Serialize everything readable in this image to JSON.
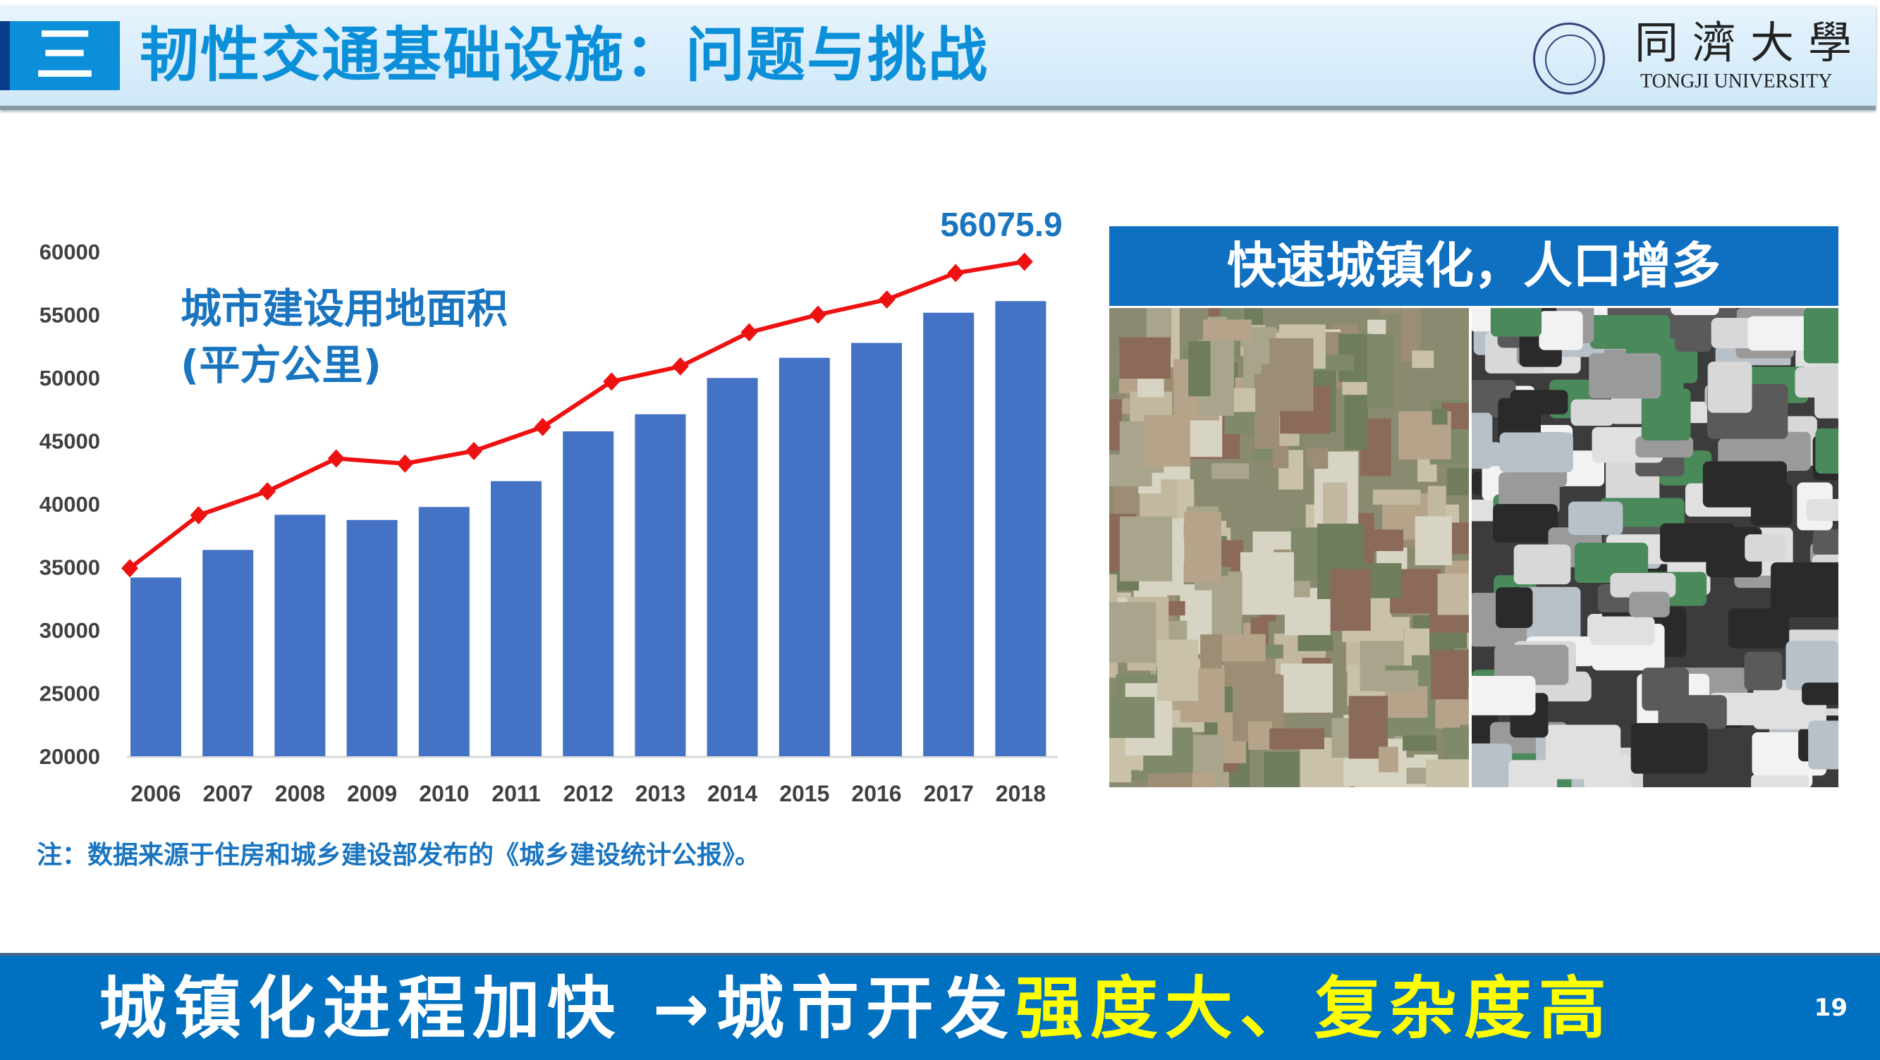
{
  "header": {
    "section_number": "三",
    "title": "韧性交通基础设施：问题与挑战",
    "logo_cn": "同濟大學",
    "logo_en": "TONGJI UNIVERSITY"
  },
  "chart_data": {
    "type": "bar",
    "title": "城市建设用地面积\n(平方公里)",
    "title_line1": "城市建设用地面积",
    "title_line2": "(平方公里)",
    "categories": [
      "2006",
      "2007",
      "2008",
      "2009",
      "2010",
      "2011",
      "2012",
      "2013",
      "2014",
      "2015",
      "2016",
      "2017",
      "2018"
    ],
    "values": [
      34167,
      36352,
      39141,
      38727,
      39758,
      41805,
      45751,
      47109,
      49983,
      51584,
      52761,
      55156,
      56076
    ],
    "trend_line": {
      "type": "line",
      "color": "#ee1111",
      "values": [
        34900,
        39100,
        41000,
        43600,
        43200,
        44200,
        46100,
        49700,
        50900,
        53600,
        55000,
        56200,
        58300,
        59200
      ]
    },
    "data_label": "56075.9",
    "yticks": [
      "20000",
      "25000",
      "30000",
      "35000",
      "40000",
      "45000",
      "50000",
      "55000",
      "60000"
    ],
    "ylim": [
      20000,
      60000
    ],
    "xlabel": "",
    "ylabel": "",
    "grid": false,
    "bar_color": "#4472c4"
  },
  "note": "注：数据来源于住房和城乡建设部发布的《城乡建设统计公报》。",
  "photos": {
    "header": "快速城镇化，人口增多"
  },
  "footer": {
    "part1": "城镇化进程加快 →城市开发",
    "part2": "强度大、复杂度高",
    "page_number": "19"
  }
}
